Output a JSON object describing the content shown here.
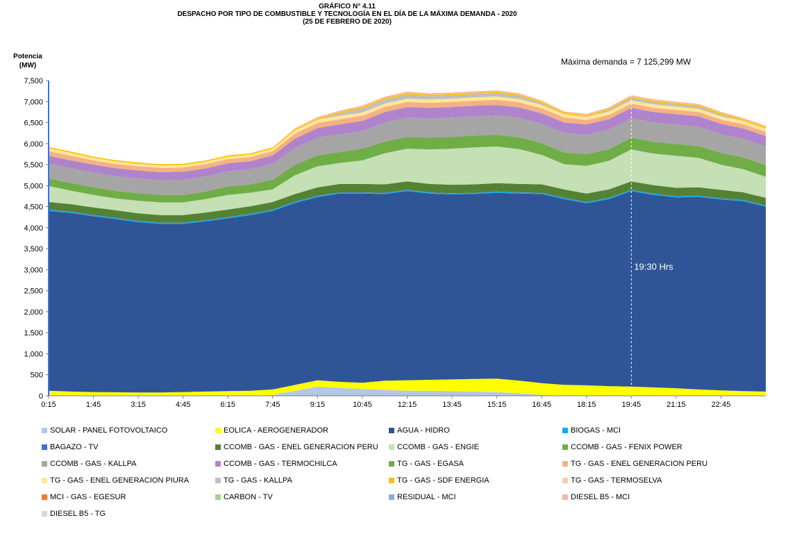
{
  "header": {
    "title_line1": "GRÁFICO N° 4.11",
    "title_line2": "DESPACHO POR TIPO DE COMBUSTIBLE Y TECNOLOGÍA EN EL DÍA DE LA MÁXIMA  DEMANDA  - 2020",
    "title_line3": "(25 DE FEBRERO DE 2020)"
  },
  "chart_data": {
    "type": "area",
    "stacked": true,
    "ylabel_line1": "Potencia",
    "ylabel_line2": "(MW)",
    "ylim": [
      0,
      7500
    ],
    "y_ticks": [
      0,
      500,
      1000,
      1500,
      2000,
      2500,
      3000,
      3500,
      4000,
      4500,
      5000,
      5500,
      6000,
      6500,
      7000,
      7500
    ],
    "y_tick_labels": [
      "0",
      "500",
      "1,000",
      "1,500",
      "2,000",
      "2,500",
      "3,000",
      "3,500",
      "4,000",
      "4,500",
      "5,000",
      "5,500",
      "6,000",
      "6,500",
      "7,000",
      "7,500"
    ],
    "x_tick_labels": [
      "0:15",
      "1:45",
      "3:15",
      "4:45",
      "6:15",
      "7:45",
      "9:15",
      "10:45",
      "12:15",
      "13:45",
      "15:15",
      "16:45",
      "18:15",
      "19:45",
      "21:15",
      "22:45"
    ],
    "x": [
      "0:15",
      "1:00",
      "1:45",
      "2:30",
      "3:15",
      "4:00",
      "4:45",
      "5:30",
      "6:15",
      "7:00",
      "7:45",
      "8:30",
      "9:15",
      "10:00",
      "10:45",
      "11:30",
      "12:15",
      "13:00",
      "13:45",
      "14:30",
      "15:15",
      "16:00",
      "16:45",
      "17:30",
      "18:15",
      "19:00",
      "19:30",
      "20:30",
      "21:15",
      "22:00",
      "22:45",
      "23:30",
      "24:00"
    ],
    "annotation_max": "Máxima demanda = 7 125,299 MW",
    "annotation_time": "19:30 Hrs",
    "max_time_index": 26,
    "grid": false,
    "legend_position": "bottom",
    "series": [
      {
        "name": "SOLAR - PANEL FOTOVOLTAICO",
        "color": "#b4c7e7",
        "values": [
          0,
          0,
          0,
          0,
          0,
          0,
          0,
          0,
          0,
          0,
          20,
          120,
          220,
          190,
          160,
          140,
          120,
          120,
          110,
          100,
          90,
          60,
          20,
          0,
          0,
          0,
          0,
          0,
          0,
          0,
          0,
          0,
          0
        ]
      },
      {
        "name": "EOLICA - AEROGENERADOR",
        "color": "#ffff00",
        "values": [
          120,
          100,
          90,
          85,
          80,
          80,
          90,
          100,
          110,
          120,
          130,
          140,
          150,
          140,
          150,
          220,
          250,
          260,
          280,
          300,
          320,
          300,
          280,
          260,
          250,
          230,
          220,
          200,
          180,
          150,
          130,
          110,
          100
        ]
      },
      {
        "name": "AGUA - HIDRO",
        "color": "#2f5597",
        "values": [
          4280,
          4250,
          4180,
          4120,
          4050,
          4010,
          4000,
          4050,
          4110,
          4180,
          4250,
          4330,
          4360,
          4480,
          4500,
          4440,
          4500,
          4430,
          4400,
          4400,
          4420,
          4450,
          4500,
          4420,
          4330,
          4450,
          4650,
          4580,
          4540,
          4580,
          4540,
          4520,
          4400
        ]
      },
      {
        "name": "BIOGAS - MCI",
        "color": "#00b0f0",
        "values": [
          20,
          20,
          20,
          20,
          20,
          20,
          20,
          20,
          20,
          20,
          20,
          20,
          20,
          20,
          20,
          20,
          20,
          20,
          20,
          20,
          20,
          20,
          20,
          20,
          20,
          20,
          20,
          20,
          20,
          20,
          20,
          20,
          20
        ]
      },
      {
        "name": "BAGAZO - TV",
        "color": "#4472c4",
        "values": [
          10,
          10,
          10,
          10,
          10,
          10,
          10,
          10,
          10,
          10,
          10,
          10,
          10,
          10,
          10,
          10,
          10,
          10,
          10,
          10,
          10,
          10,
          10,
          10,
          10,
          10,
          10,
          10,
          10,
          10,
          10,
          10,
          10
        ]
      },
      {
        "name": "CCOMB - GAS - ENEL GENERACION PERU",
        "color": "#548235",
        "values": [
          180,
          180,
          180,
          180,
          180,
          180,
          180,
          180,
          180,
          180,
          180,
          180,
          200,
          200,
          200,
          200,
          200,
          200,
          200,
          200,
          200,
          200,
          200,
          200,
          200,
          200,
          200,
          200,
          200,
          200,
          200,
          180,
          180
        ]
      },
      {
        "name": "CCOMB - GAS - ENGIE",
        "color": "#c5e0b4",
        "values": [
          380,
          320,
          300,
          280,
          300,
          300,
          300,
          320,
          350,
          320,
          300,
          450,
          500,
          500,
          560,
          740,
          780,
          820,
          860,
          880,
          870,
          830,
          700,
          600,
          660,
          680,
          760,
          750,
          760,
          700,
          600,
          550,
          500
        ]
      },
      {
        "name": "CCOMB - GAS - FENIX POWER",
        "color": "#70ad47",
        "values": [
          180,
          180,
          180,
          180,
          180,
          180,
          180,
          180,
          200,
          200,
          230,
          250,
          260,
          260,
          280,
          280,
          280,
          280,
          280,
          280,
          280,
          280,
          280,
          280,
          280,
          280,
          280,
          280,
          280,
          280,
          280,
          280,
          280
        ]
      },
      {
        "name": "CCOMB - GAS - KALLPA",
        "color": "#a5a5a5",
        "values": [
          350,
          350,
          350,
          350,
          350,
          350,
          360,
          360,
          360,
          360,
          380,
          400,
          420,
          420,
          420,
          450,
          460,
          460,
          460,
          460,
          460,
          460,
          460,
          460,
          460,
          460,
          460,
          460,
          460,
          460,
          440,
          440,
          440
        ]
      },
      {
        "name": "CCOMB - GAS - TERMOCHILCA",
        "color": "#b084cc",
        "values": [
          190,
          190,
          190,
          190,
          190,
          190,
          190,
          190,
          190,
          190,
          200,
          220,
          230,
          240,
          240,
          250,
          250,
          250,
          250,
          250,
          250,
          250,
          250,
          250,
          250,
          250,
          250,
          250,
          250,
          250,
          250,
          250,
          250
        ]
      },
      {
        "name": "TG - GAS - EGASA",
        "color": "#70ad47",
        "values": [
          0,
          0,
          0,
          0,
          0,
          0,
          0,
          0,
          0,
          0,
          0,
          0,
          0,
          0,
          0,
          0,
          0,
          0,
          0,
          0,
          0,
          0,
          0,
          0,
          0,
          0,
          0,
          0,
          0,
          0,
          0,
          0,
          0
        ]
      },
      {
        "name": "TG - GAS - ENEL GENERACION PERU",
        "color": "#f4b183",
        "values": [
          110,
          110,
          100,
          100,
          100,
          100,
          100,
          100,
          100,
          100,
          100,
          120,
          120,
          120,
          120,
          120,
          120,
          120,
          120,
          120,
          120,
          120,
          120,
          120,
          100,
          100,
          100,
          100,
          100,
          100,
          100,
          100,
          100
        ]
      },
      {
        "name": "TG - GAS - ENEL GENERACION PIURA",
        "color": "#ffe699",
        "values": [
          70,
          70,
          60,
          60,
          60,
          60,
          60,
          60,
          60,
          60,
          60,
          80,
          80,
          80,
          80,
          80,
          80,
          80,
          80,
          80,
          80,
          80,
          80,
          80,
          80,
          80,
          80,
          80,
          80,
          80,
          80,
          80,
          80
        ]
      },
      {
        "name": "TG - GAS - KALLPA",
        "color": "#bfbfbf",
        "values": [
          0,
          0,
          0,
          0,
          0,
          0,
          0,
          0,
          0,
          0,
          0,
          0,
          0,
          60,
          100,
          100,
          100,
          80,
          80,
          80,
          80,
          70,
          40,
          0,
          0,
          40,
          60,
          60,
          50,
          50,
          40,
          0,
          0
        ]
      },
      {
        "name": "TG - GAS - SDF ENERGIA",
        "color": "#ffc000",
        "values": [
          30,
          30,
          30,
          30,
          30,
          30,
          30,
          30,
          30,
          30,
          30,
          30,
          30,
          30,
          30,
          30,
          30,
          30,
          30,
          30,
          30,
          30,
          30,
          30,
          30,
          30,
          30,
          30,
          30,
          30,
          30,
          30,
          30
        ]
      },
      {
        "name": "TG - GAS - TERMOSELVA",
        "color": "#f8cbad",
        "values": [
          0,
          0,
          0,
          0,
          0,
          0,
          0,
          0,
          0,
          0,
          0,
          20,
          20,
          20,
          20,
          20,
          20,
          20,
          20,
          20,
          20,
          20,
          20,
          20,
          20,
          20,
          20,
          20,
          20,
          20,
          20,
          20,
          20
        ]
      },
      {
        "name": "MCI - GAS - EGESUR",
        "color": "#ed7d31",
        "values": [
          0,
          0,
          0,
          0,
          0,
          0,
          0,
          0,
          0,
          0,
          0,
          0,
          10,
          10,
          10,
          10,
          10,
          10,
          10,
          10,
          10,
          10,
          10,
          10,
          10,
          10,
          10,
          10,
          10,
          10,
          10,
          10,
          10
        ]
      },
      {
        "name": "CARBON - TV",
        "color": "#a9d18e",
        "values": [
          0,
          0,
          0,
          0,
          0,
          0,
          0,
          0,
          0,
          0,
          0,
          0,
          0,
          0,
          0,
          0,
          0,
          0,
          0,
          0,
          0,
          0,
          0,
          0,
          0,
          0,
          0,
          0,
          0,
          0,
          0,
          0,
          0
        ]
      },
      {
        "name": "RESIDUAL - MCI",
        "color": "#8faadc",
        "values": [
          0,
          0,
          0,
          0,
          0,
          0,
          0,
          0,
          0,
          0,
          0,
          0,
          0,
          0,
          0,
          0,
          0,
          0,
          0,
          0,
          0,
          0,
          0,
          0,
          0,
          0,
          0,
          0,
          0,
          0,
          0,
          0,
          0
        ]
      },
      {
        "name": "DIESEL B5 - MCI",
        "color": "#f4b6a8",
        "values": [
          0,
          0,
          0,
          0,
          0,
          0,
          0,
          0,
          0,
          0,
          0,
          0,
          0,
          0,
          0,
          0,
          0,
          0,
          0,
          0,
          0,
          0,
          0,
          0,
          0,
          0,
          0,
          0,
          0,
          0,
          0,
          0,
          0
        ]
      },
      {
        "name": "DIESEL B5 - TG",
        "color": "#d9d9d9",
        "values": [
          0,
          0,
          0,
          0,
          0,
          0,
          0,
          0,
          0,
          0,
          0,
          0,
          0,
          0,
          0,
          0,
          0,
          0,
          0,
          0,
          0,
          0,
          0,
          0,
          0,
          0,
          0,
          0,
          0,
          0,
          0,
          0,
          0
        ]
      }
    ]
  }
}
